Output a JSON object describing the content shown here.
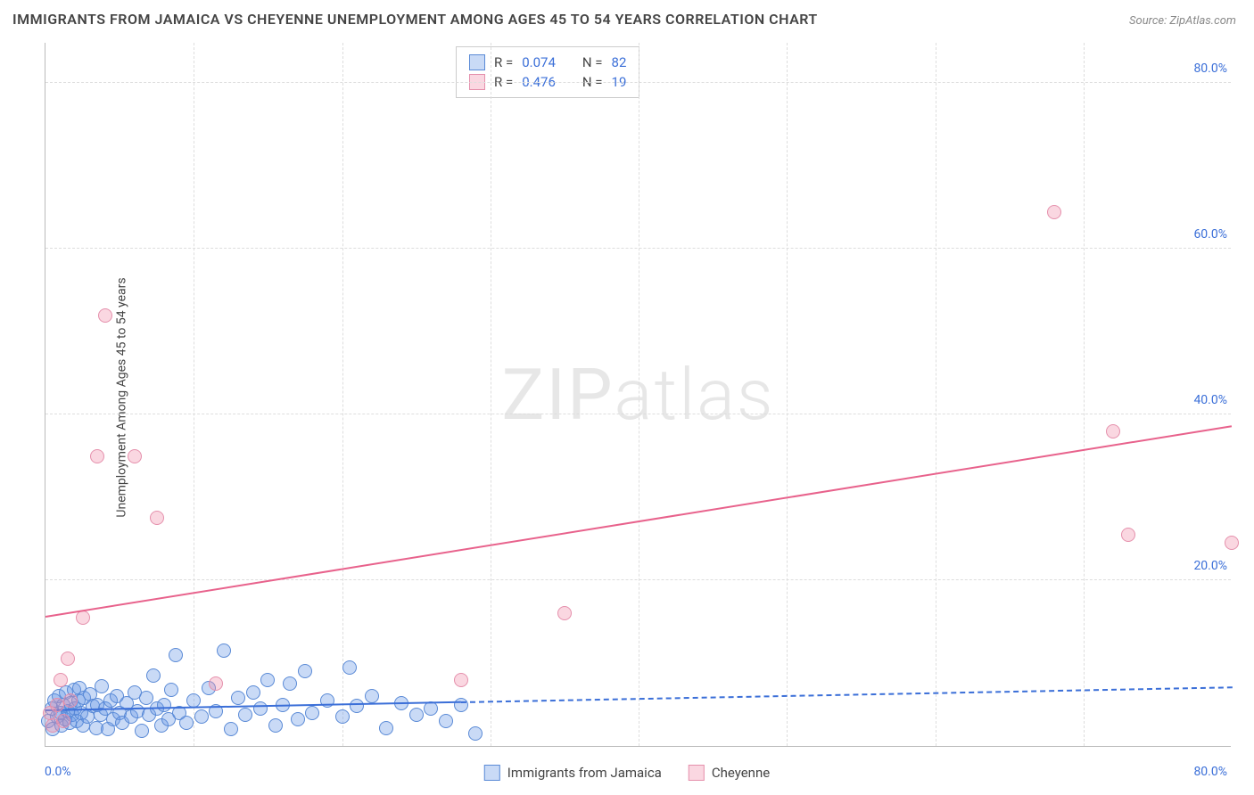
{
  "title": "IMMIGRANTS FROM JAMAICA VS CHEYENNE UNEMPLOYMENT AMONG AGES 45 TO 54 YEARS CORRELATION CHART",
  "source_label": "Source: ZipAtlas.com",
  "ylabel": "Unemployment Among Ages 45 to 54 years",
  "watermark_a": "ZIP",
  "watermark_b": "atlas",
  "chart": {
    "type": "scatter",
    "xlim": [
      0,
      80
    ],
    "ylim": [
      0,
      85
    ],
    "x_tick_min_label": "0.0%",
    "x_tick_max_label": "80.0%",
    "y_ticks": [
      20,
      40,
      60,
      80
    ],
    "y_tick_labels": [
      "20.0%",
      "40.0%",
      "60.0%",
      "80.0%"
    ],
    "x_grid": [
      10,
      20,
      30,
      40,
      50,
      60,
      70
    ],
    "background_color": "#ffffff",
    "grid_color": "#dddddd",
    "axis_color": "#bbbbbb",
    "text_color": "#444444",
    "accent_color": "#3b6fd8",
    "marker_radius": 8,
    "marker_stroke_width": 1.2,
    "trend_width": 2
  },
  "series": [
    {
      "key": "jamaica",
      "label": "Immigrants from Jamaica",
      "color_fill": "rgba(100,150,230,0.35)",
      "color_stroke": "#5a8ad6",
      "R": "0.074",
      "N": "82",
      "trend": {
        "x0": 0,
        "y0": 4.2,
        "x1": 28,
        "y1": 5.2,
        "dash_x1": 80,
        "dash_y1": 7.0,
        "color": "#3b6fd8"
      },
      "points": [
        [
          0.2,
          3.0
        ],
        [
          0.4,
          4.5
        ],
        [
          0.5,
          2.0
        ],
        [
          0.6,
          5.5
        ],
        [
          0.8,
          3.5
        ],
        [
          0.9,
          6.0
        ],
        [
          1.0,
          4.0
        ],
        [
          1.1,
          2.5
        ],
        [
          1.2,
          5.0
        ],
        [
          1.3,
          3.2
        ],
        [
          1.4,
          6.5
        ],
        [
          1.5,
          4.2
        ],
        [
          1.6,
          2.8
        ],
        [
          1.7,
          5.2
        ],
        [
          1.8,
          3.8
        ],
        [
          1.9,
          6.8
        ],
        [
          2.0,
          4.5
        ],
        [
          2.1,
          3.0
        ],
        [
          2.2,
          5.5
        ],
        [
          2.3,
          7.0
        ],
        [
          2.4,
          4.0
        ],
        [
          2.5,
          2.5
        ],
        [
          2.6,
          5.8
        ],
        [
          2.8,
          3.5
        ],
        [
          3.0,
          6.2
        ],
        [
          3.2,
          4.8
        ],
        [
          3.4,
          2.2
        ],
        [
          3.5,
          5.0
        ],
        [
          3.7,
          3.8
        ],
        [
          3.8,
          7.2
        ],
        [
          4.0,
          4.5
        ],
        [
          4.2,
          2.0
        ],
        [
          4.4,
          5.5
        ],
        [
          4.6,
          3.2
        ],
        [
          4.8,
          6.0
        ],
        [
          5.0,
          4.0
        ],
        [
          5.2,
          2.8
        ],
        [
          5.5,
          5.2
        ],
        [
          5.8,
          3.5
        ],
        [
          6.0,
          6.5
        ],
        [
          6.2,
          4.2
        ],
        [
          6.5,
          1.8
        ],
        [
          6.8,
          5.8
        ],
        [
          7.0,
          3.8
        ],
        [
          7.3,
          8.5
        ],
        [
          7.5,
          4.5
        ],
        [
          7.8,
          2.5
        ],
        [
          8.0,
          5.0
        ],
        [
          8.3,
          3.2
        ],
        [
          8.5,
          6.8
        ],
        [
          8.8,
          11.0
        ],
        [
          9.0,
          4.0
        ],
        [
          9.5,
          2.8
        ],
        [
          10.0,
          5.5
        ],
        [
          10.5,
          3.5
        ],
        [
          11.0,
          7.0
        ],
        [
          11.5,
          4.2
        ],
        [
          12.0,
          11.5
        ],
        [
          12.5,
          2.0
        ],
        [
          13.0,
          5.8
        ],
        [
          13.5,
          3.8
        ],
        [
          14.0,
          6.5
        ],
        [
          14.5,
          4.5
        ],
        [
          15.0,
          8.0
        ],
        [
          15.5,
          2.5
        ],
        [
          16.0,
          5.0
        ],
        [
          16.5,
          7.5
        ],
        [
          17.0,
          3.2
        ],
        [
          17.5,
          9.0
        ],
        [
          18.0,
          4.0
        ],
        [
          19.0,
          5.5
        ],
        [
          20.0,
          3.5
        ],
        [
          20.5,
          9.5
        ],
        [
          21.0,
          4.8
        ],
        [
          22.0,
          6.0
        ],
        [
          23.0,
          2.2
        ],
        [
          24.0,
          5.2
        ],
        [
          25.0,
          3.8
        ],
        [
          26.0,
          4.5
        ],
        [
          27.0,
          3.0
        ],
        [
          28.0,
          5.0
        ],
        [
          29.0,
          1.5
        ]
      ]
    },
    {
      "key": "cheyenne",
      "label": "Cheyenne",
      "color_fill": "rgba(240,140,170,0.35)",
      "color_stroke": "#e590ac",
      "R": "0.476",
      "N": "19",
      "trend": {
        "x0": 0,
        "y0": 15.5,
        "x1": 80,
        "y1": 38.5,
        "color": "#e8628c"
      },
      "points": [
        [
          0.3,
          4.0
        ],
        [
          0.5,
          2.5
        ],
        [
          0.8,
          5.0
        ],
        [
          1.0,
          8.0
        ],
        [
          1.2,
          3.0
        ],
        [
          1.5,
          10.5
        ],
        [
          1.7,
          5.5
        ],
        [
          2.5,
          15.5
        ],
        [
          3.5,
          35.0
        ],
        [
          4.0,
          52.0
        ],
        [
          6.0,
          35.0
        ],
        [
          7.5,
          27.5
        ],
        [
          11.5,
          7.5
        ],
        [
          28.0,
          8.0
        ],
        [
          35.0,
          16.0
        ],
        [
          68.0,
          64.5
        ],
        [
          72.0,
          38.0
        ],
        [
          73.0,
          25.5
        ],
        [
          80.0,
          24.5
        ]
      ]
    }
  ],
  "corr_legend": {
    "R_label": "R =",
    "N_label": "N ="
  }
}
